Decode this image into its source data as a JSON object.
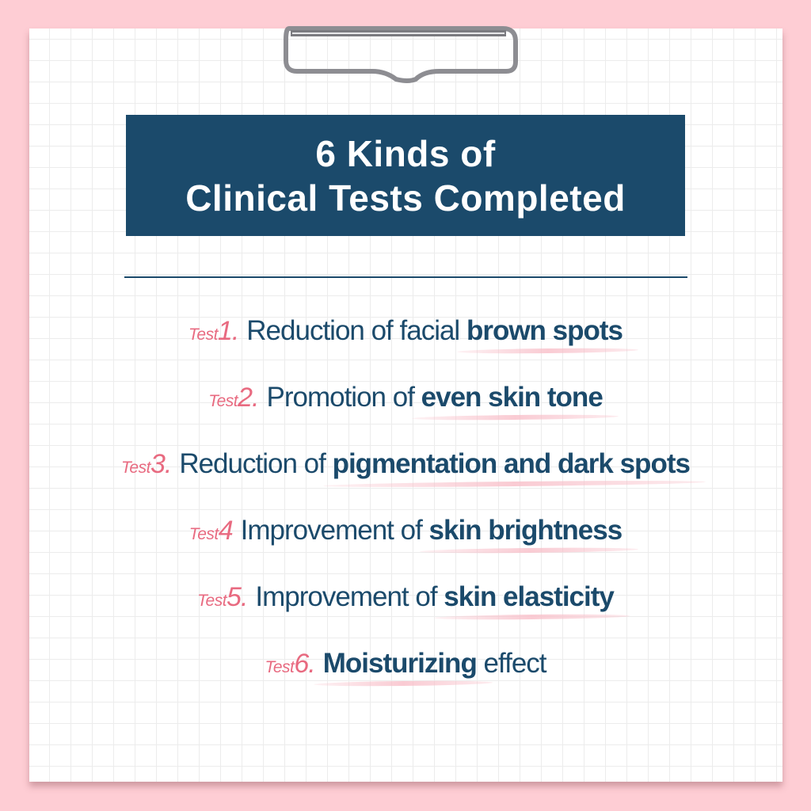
{
  "title": {
    "line1": "6 Kinds of",
    "line2": "Clinical Tests Completed"
  },
  "colors": {
    "navy": "#1b4a6b",
    "pink_accent": "#e86a80",
    "background": "#fecdd4"
  },
  "tests": [
    {
      "tag": "Test",
      "num": "1.",
      "text": "Reduction of facial ",
      "bold": "brown spots",
      "after": ""
    },
    {
      "tag": "Test",
      "num": "2.",
      "text": "Promotion of ",
      "bold": "even skin tone",
      "after": ""
    },
    {
      "tag": "Test",
      "num": "3.",
      "text": "Reduction of ",
      "bold": "pigmentation and dark spots",
      "after": ""
    },
    {
      "tag": "Test",
      "num": "4",
      "text": "Improvement of ",
      "bold": "skin brightness",
      "after": ""
    },
    {
      "tag": "Test",
      "num": "5.",
      "text": "Improvement of ",
      "bold": "skin elasticity",
      "after": ""
    },
    {
      "tag": "Test",
      "num": "6.",
      "text": "",
      "bold": "Moisturizing",
      "after": " effect"
    }
  ]
}
